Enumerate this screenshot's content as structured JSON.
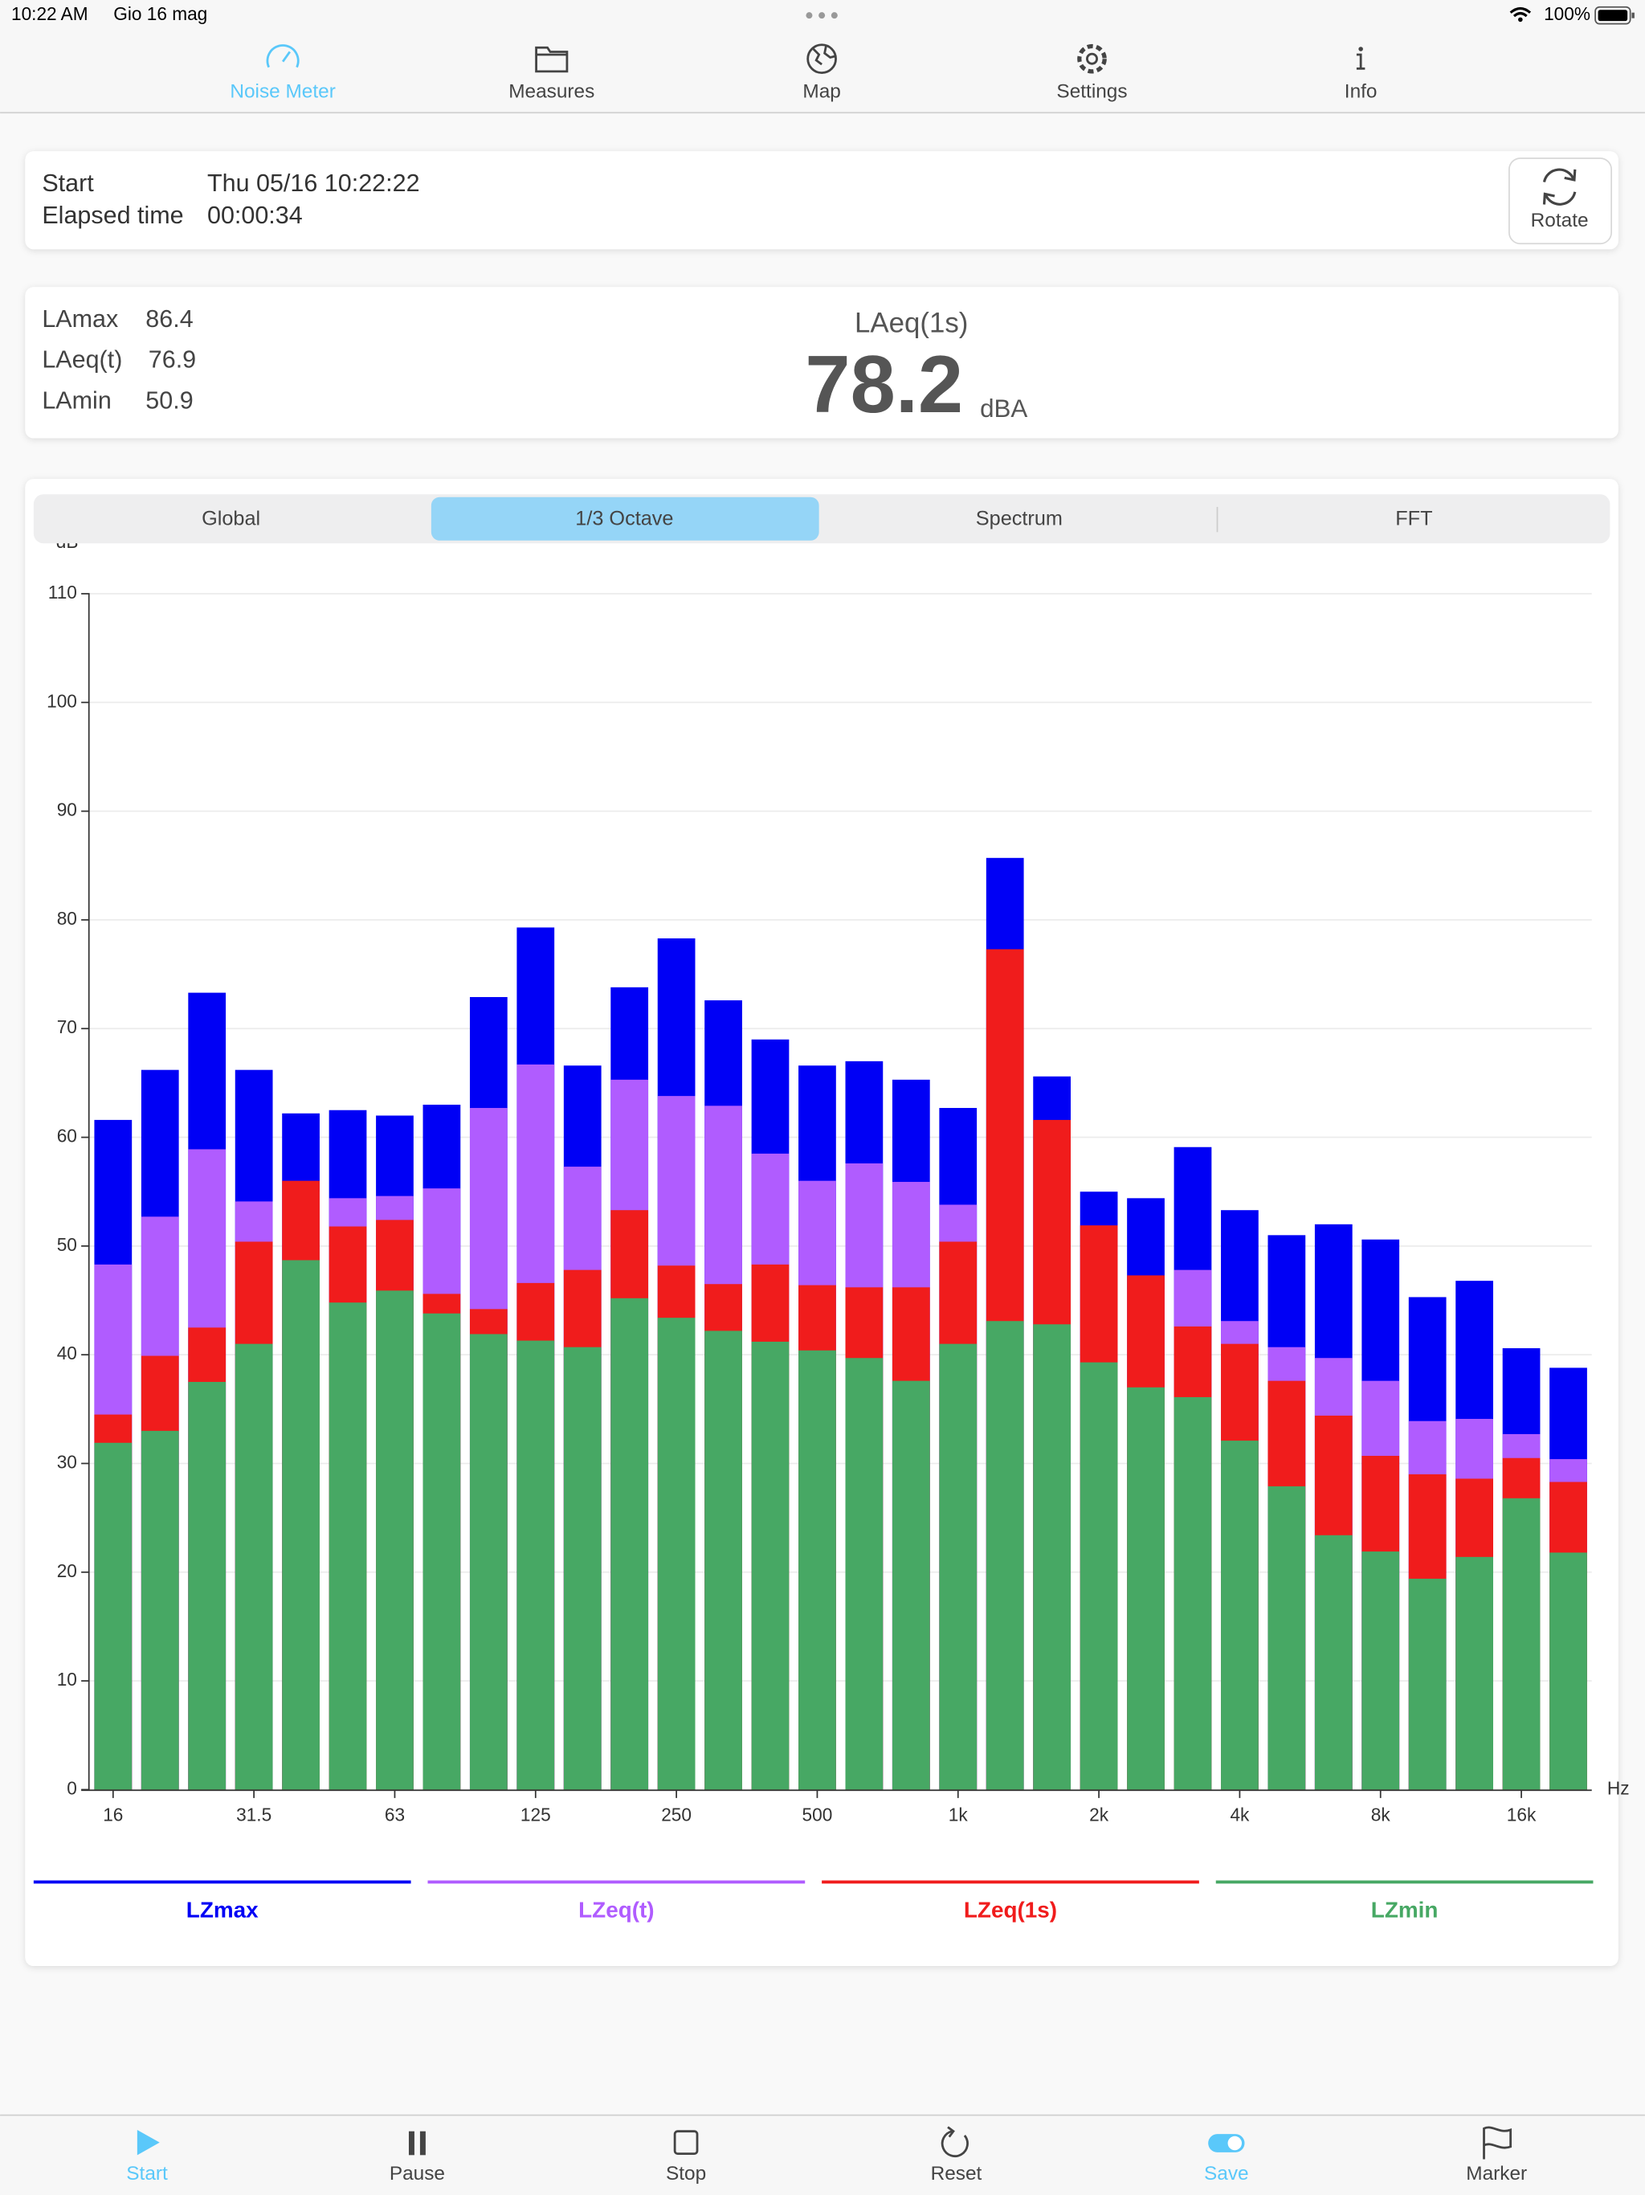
{
  "status_bar": {
    "time": "10:22 AM",
    "date": "Gio 16 mag",
    "battery": "100%"
  },
  "top_tabs": [
    {
      "label": "Noise Meter",
      "active": true
    },
    {
      "label": "Measures",
      "active": false
    },
    {
      "label": "Map",
      "active": false
    },
    {
      "label": "Settings",
      "active": false
    },
    {
      "label": "Info",
      "active": false
    }
  ],
  "session": {
    "start_label": "Start",
    "start_value": "Thu 05/16 10:22:22",
    "elapsed_label": "Elapsed time",
    "elapsed_value": "00:00:34",
    "rotate": "Rotate"
  },
  "levels": {
    "stats": [
      {
        "label": "LAmax",
        "value": 86.4
      },
      {
        "label": "LAeq(t)",
        "value": 76.9
      },
      {
        "label": "LAmin",
        "value": 50.9
      }
    ],
    "main_label": "LAeq(1s)",
    "main_value": 78.2,
    "unit": "dBA"
  },
  "segments": [
    {
      "label": "Global",
      "active": false
    },
    {
      "label": "1/3 Octave",
      "active": true
    },
    {
      "label": "Spectrum",
      "active": false
    },
    {
      "label": "FFT",
      "active": false
    }
  ],
  "chart_data": {
    "type": "bar",
    "y_label": "dB",
    "x_label": "Hz",
    "categories": [
      "16",
      null,
      null,
      "31.5",
      null,
      null,
      "63",
      null,
      null,
      "125",
      null,
      null,
      "250",
      null,
      null,
      "500",
      null,
      null,
      "1k",
      null,
      null,
      "2k",
      null,
      null,
      "4k",
      null,
      null,
      "8k",
      null,
      null,
      "16k",
      null
    ],
    "series": [
      {
        "name": "LZmax",
        "color": "#0000f5",
        "values": [
          61.6,
          66.2,
          73.3,
          66.2,
          62.2,
          62.5,
          62.0,
          63.0,
          72.9,
          79.3,
          66.6,
          73.8,
          78.3,
          72.6,
          69.0,
          66.6,
          67.0,
          65.3,
          62.7,
          85.7,
          65.6,
          55.0,
          54.4,
          59.1,
          53.3,
          51.0,
          52.0,
          50.6,
          45.3,
          46.8,
          40.6,
          38.8
        ]
      },
      {
        "name": "LZeq(t)",
        "color": "#b05cff",
        "values": [
          48.3,
          52.7,
          58.9,
          54.1,
          55.0,
          54.4,
          54.6,
          55.3,
          62.7,
          66.7,
          57.3,
          65.3,
          63.8,
          62.9,
          58.5,
          56.0,
          57.6,
          55.9,
          53.8,
          60.0,
          55.0,
          50.0,
          46.0,
          47.8,
          43.1,
          40.7,
          39.7,
          37.6,
          33.9,
          34.1,
          32.7,
          30.4
        ]
      },
      {
        "name": "LZeq(1s)",
        "color": "#f01c1c",
        "values": [
          34.5,
          39.9,
          42.5,
          50.4,
          56.0,
          51.8,
          52.4,
          45.6,
          44.2,
          46.6,
          47.8,
          53.3,
          48.2,
          46.5,
          48.3,
          46.4,
          46.2,
          46.2,
          50.4,
          77.3,
          61.6,
          51.9,
          47.3,
          42.6,
          41.0,
          37.6,
          34.4,
          30.7,
          29.0,
          28.6,
          30.5,
          28.3
        ]
      },
      {
        "name": "LZmin",
        "color": "#47a864",
        "values": [
          31.9,
          33.0,
          37.5,
          41.0,
          48.7,
          44.8,
          45.9,
          43.8,
          41.9,
          41.3,
          40.7,
          45.2,
          43.4,
          42.2,
          41.2,
          40.4,
          39.7,
          37.6,
          41.0,
          43.1,
          42.8,
          39.3,
          37.0,
          36.1,
          32.1,
          27.9,
          23.4,
          21.9,
          19.4,
          21.4,
          26.8,
          21.8
        ]
      }
    ],
    "ylim": [
      0,
      110
    ],
    "yticks": [
      0,
      10,
      20,
      30,
      40,
      50,
      60,
      70,
      80,
      90,
      100,
      110
    ],
    "grid": true
  },
  "bottom_bar": [
    {
      "label": "Start",
      "active": true
    },
    {
      "label": "Pause",
      "active": false
    },
    {
      "label": "Stop",
      "active": false
    },
    {
      "label": "Reset",
      "active": false
    },
    {
      "label": "Save",
      "active": true
    },
    {
      "label": "Marker",
      "active": false
    }
  ]
}
